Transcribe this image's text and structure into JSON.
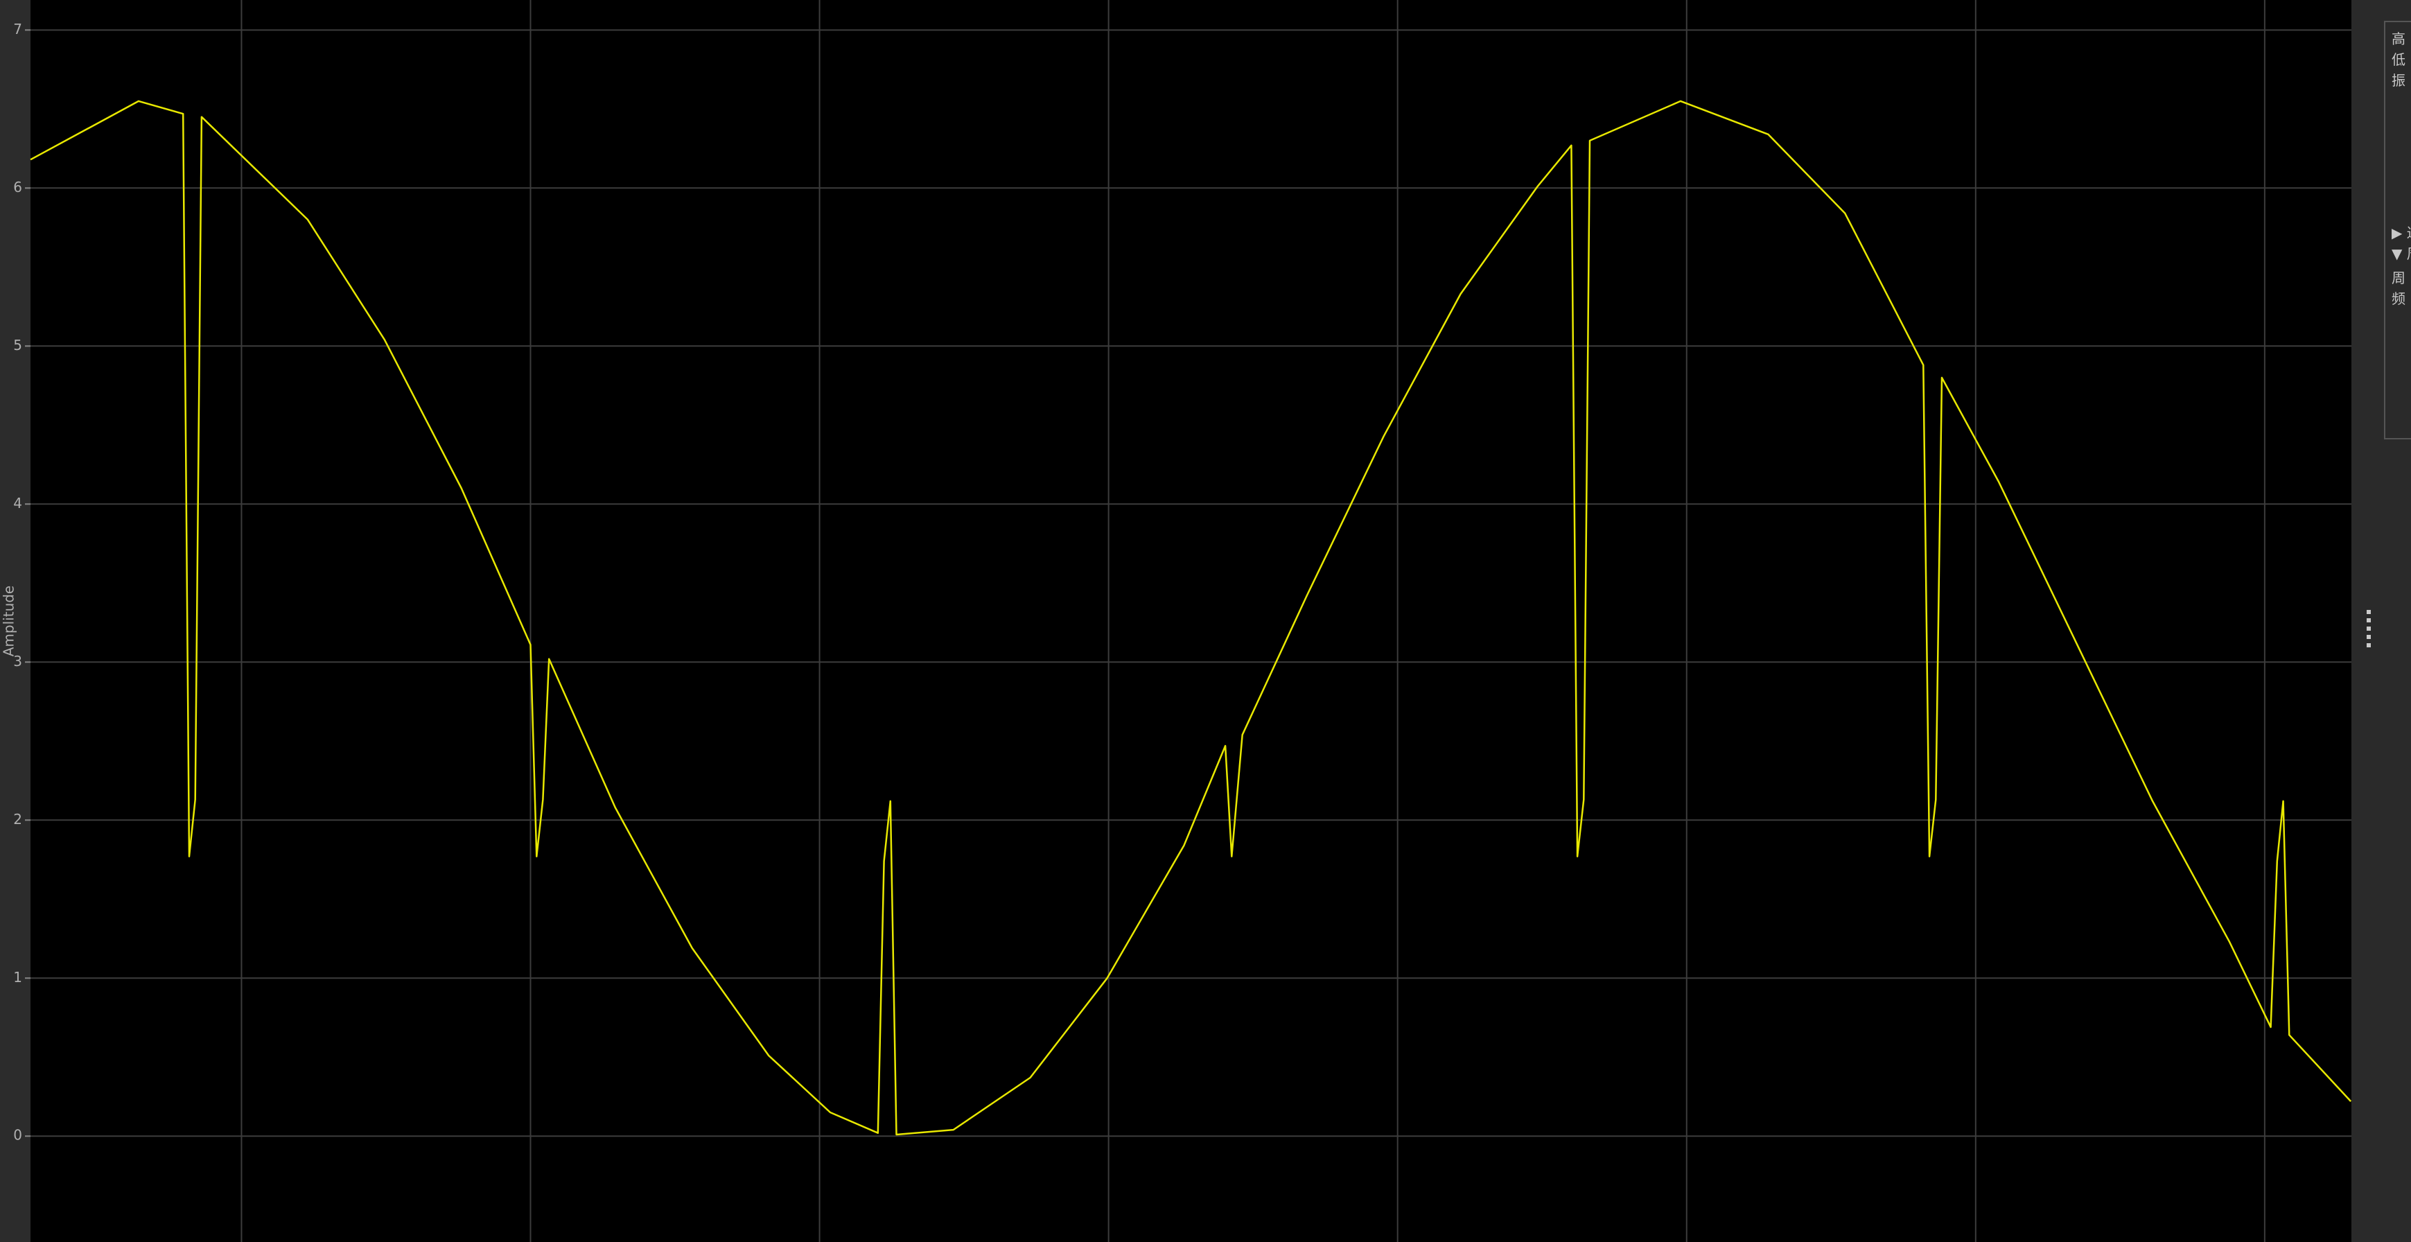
{
  "chart_data": {
    "type": "line",
    "y_label": "Amplitude",
    "x": [
      0.27,
      0.644,
      0.798,
      0.819,
      0.84,
      0.862,
      1.229,
      1.495,
      1.761,
      2.0,
      2.021,
      2.043,
      2.064,
      2.293,
      2.559,
      2.824,
      3.037,
      3.202,
      3.223,
      3.245,
      3.266,
      3.463,
      3.729,
      3.995,
      4.261,
      4.404,
      4.426,
      4.463,
      4.686,
      4.952,
      5.218,
      5.484,
      5.601,
      5.622,
      5.644,
      5.665,
      5.979,
      6.282,
      6.548,
      6.819,
      6.84,
      6.862,
      6.883,
      7.08,
      7.346,
      7.612,
      7.878,
      8.021,
      8.043,
      8.064,
      8.085,
      8.298
    ],
    "values": [
      6.18,
      6.55,
      6.47,
      1.77,
      2.13,
      6.45,
      5.8,
      5.04,
      4.1,
      3.11,
      1.77,
      2.13,
      3.02,
      2.08,
      1.19,
      0.51,
      0.15,
      0.02,
      1.74,
      2.12,
      0.01,
      0.04,
      0.37,
      1.0,
      1.84,
      2.47,
      1.77,
      2.54,
      3.42,
      4.43,
      5.33,
      6.01,
      6.27,
      1.77,
      2.13,
      6.3,
      6.55,
      6.34,
      5.84,
      4.88,
      1.77,
      2.13,
      4.8,
      4.14,
      3.13,
      2.12,
      1.23,
      0.69,
      1.74,
      2.12,
      0.64,
      0.22
    ],
    "color": "#e8e800",
    "xlim": [
      0.27,
      8.3
    ],
    "xticks": [
      1,
      2,
      3,
      4,
      5,
      6,
      7,
      8
    ],
    "ylim": [
      -0.67,
      7.19
    ],
    "yticks": [
      0,
      1,
      2,
      3,
      4,
      5,
      6,
      7
    ],
    "grid": true
  },
  "side_panel": {
    "items": [
      "高",
      "低",
      "振",
      "▶ 过",
      "▼ 周",
      "周",
      "频"
    ]
  }
}
